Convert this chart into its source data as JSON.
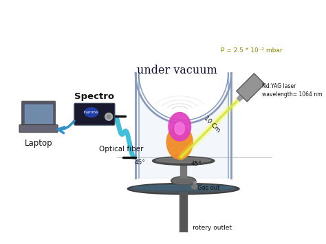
{
  "bg_color": "#ffffff",
  "vacuum_label": "under vacuum",
  "pressure_label": "P = 2.5 * 10⁻² mbar",
  "laser_label": "Nd:YAG laser\nwavelength= 1064 nm",
  "optical_fiber_label": "Optical fiber",
  "spectro_label": "Spectro",
  "laptop_label": "Laptop",
  "gas_out_label": "Gas out",
  "rotery_label": "rotery outlet",
  "distance_label": "10 Cm",
  "angle_left": "45°",
  "angle_right": "45°",
  "bell_jar_fill": "#e8f0f8",
  "bell_jar_edge": "#8899bb",
  "bell_jar_edge2": "#5577aa",
  "plasma_pink": "#e040c0",
  "plasma_orange": "#f08820",
  "laser_beam_color": "#d8e840",
  "optical_fiber_color": "#30b8d8",
  "arrow_color": "#3090c8",
  "spectro_color": "#1a1a2e",
  "table_color_dark": "#444444",
  "table_color_mid": "#888888",
  "base_color_dark": "#333333",
  "base_color_mid": "#666666",
  "support_color": "#777777",
  "stem_color": "#555555",
  "laser_device_color": "#888888"
}
